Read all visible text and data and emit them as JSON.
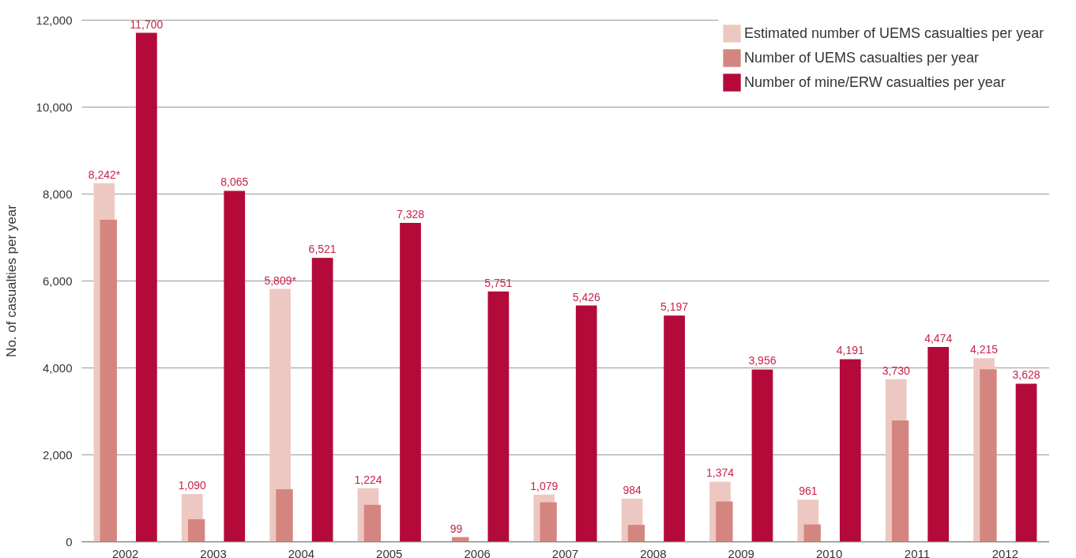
{
  "chart_data": {
    "type": "bar",
    "ylabel": "No. of casualties per year",
    "categories": [
      "2002",
      "2003",
      "2004",
      "2005",
      "2006",
      "2007",
      "2008",
      "2009",
      "2010",
      "2011",
      "2012"
    ],
    "series": [
      {
        "name": "Estimated number of UEMS casualties per year",
        "color": "#edc8c2",
        "values": [
          8242,
          1090,
          5809,
          1224,
          null,
          1079,
          984,
          1374,
          961,
          3730,
          4215
        ],
        "value_labels": [
          "8,242*",
          "1,090",
          "5,809*",
          "1,224",
          null,
          "1,079",
          "984",
          "1,374",
          "961",
          "3,730",
          "4,215"
        ]
      },
      {
        "name": "Number of UEMS casualties per year",
        "color": "#d5857f",
        "values": [
          7400,
          510,
          1200,
          840,
          99,
          900,
          380,
          920,
          390,
          2780,
          3960
        ],
        "value_labels": [
          null,
          null,
          null,
          null,
          "99",
          null,
          null,
          null,
          null,
          null,
          null
        ]
      },
      {
        "name": "Number of mine/ERW casualties per year",
        "color": "#b30a3a",
        "values": [
          11700,
          8065,
          6521,
          7328,
          5751,
          5426,
          5197,
          3956,
          4191,
          4474,
          3628
        ],
        "value_labels": [
          "11,700",
          "8,065",
          "6,521",
          "7,328",
          "5,751",
          "5,426",
          "5,197",
          "3,956",
          "4,191",
          "4,474",
          "3,628"
        ]
      }
    ],
    "ylim": [
      0,
      12000
    ],
    "yticks": [
      {
        "value": 0,
        "label": "0"
      },
      {
        "value": 2000,
        "label": "2,000"
      },
      {
        "value": 4000,
        "label": "4,000"
      },
      {
        "value": 6000,
        "label": "6,000"
      },
      {
        "value": 8000,
        "label": "8,000"
      },
      {
        "value": 10000,
        "label": "10,000"
      },
      {
        "value": 12000,
        "label": "12,000"
      }
    ],
    "grid": "y",
    "legend": "top right"
  }
}
